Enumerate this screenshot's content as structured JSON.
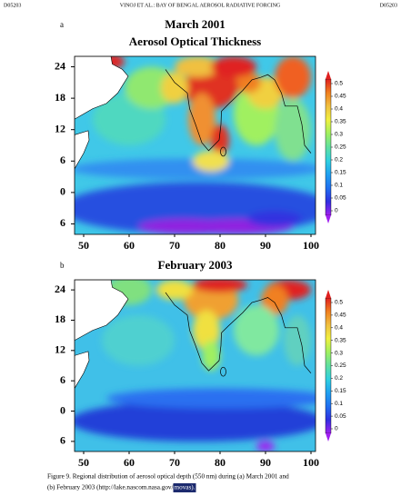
{
  "header": {
    "left": "D05203",
    "center": "VINOJ ET AL.: BAY OF BENGAL AEROSOL RADIATIVE FORCING",
    "right": "D05203"
  },
  "panels": [
    {
      "label": "a",
      "title": [
        "March 2001",
        "Aerosol Optical Thickness"
      ],
      "yticks": [
        24,
        18,
        12,
        6,
        0,
        {
          "value": -6,
          "label": "6"
        }
      ],
      "xticks": [
        50,
        60,
        70,
        80,
        90,
        100
      ],
      "colorbar_ticks": [
        0.5,
        0.45,
        0.4,
        0.35,
        0.3,
        0.25,
        0.2,
        0.15,
        0.1,
        0.05,
        0
      ]
    },
    {
      "label": "b",
      "title": [
        "February 2003"
      ],
      "yticks": [
        24,
        18,
        12,
        6,
        0,
        {
          "value": -6,
          "label": "6"
        }
      ],
      "xticks": [
        50,
        60,
        70,
        80,
        90,
        100
      ],
      "colorbar_ticks": [
        0.5,
        0.45,
        0.4,
        0.35,
        0.3,
        0.25,
        0.2,
        0.15,
        0.1,
        0.05,
        0
      ]
    }
  ],
  "caption": {
    "line1": "Figure 9. Regional distribution of aerosol optical depth (550 nm) during (a) March 2001 and",
    "line2": "(b) February 2003 (http://lake.nascom.nasa.gov/",
    "highlight": "movas)."
  }
}
